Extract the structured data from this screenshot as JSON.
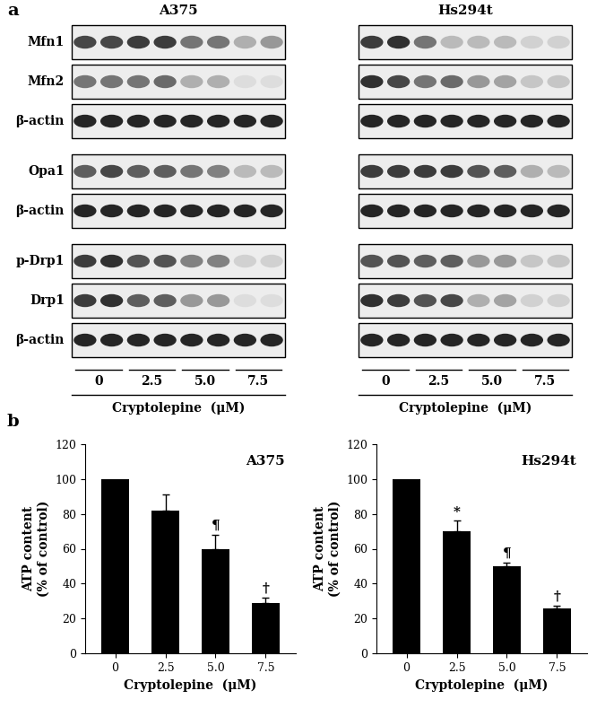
{
  "blot_panel": {
    "panel_label": "a",
    "row_groups": [
      [
        "Mfn1",
        "Mfn2",
        "β-actin"
      ],
      [
        "Opa1",
        "β-actin"
      ],
      [
        "p-Drp1",
        "Drp1",
        "β-actin"
      ]
    ],
    "doses": [
      "0",
      "2.5",
      "5.0",
      "7.5"
    ],
    "lanes_per_dose": 2,
    "xlabel": "Cryptolepine  (μM)",
    "blots": [
      {
        "cell_line": "A375",
        "band_intensity": [
          [
            0.8,
            0.8,
            0.85,
            0.85,
            0.6,
            0.6,
            0.35,
            0.45
          ],
          [
            0.6,
            0.6,
            0.6,
            0.65,
            0.35,
            0.35,
            0.15,
            0.15
          ],
          [
            0.95,
            0.95,
            0.95,
            0.95,
            0.95,
            0.95,
            0.95,
            0.95
          ],
          [
            0.7,
            0.8,
            0.7,
            0.7,
            0.6,
            0.55,
            0.3,
            0.3
          ],
          [
            0.95,
            0.95,
            0.95,
            0.95,
            0.95,
            0.95,
            0.95,
            0.95
          ],
          [
            0.85,
            0.9,
            0.75,
            0.75,
            0.55,
            0.55,
            0.2,
            0.2
          ],
          [
            0.85,
            0.9,
            0.7,
            0.7,
            0.45,
            0.45,
            0.15,
            0.15
          ],
          [
            0.95,
            0.95,
            0.95,
            0.95,
            0.95,
            0.95,
            0.95,
            0.95
          ]
        ]
      },
      {
        "cell_line": "Hs294t",
        "band_intensity": [
          [
            0.85,
            0.9,
            0.6,
            0.3,
            0.3,
            0.3,
            0.2,
            0.2
          ],
          [
            0.9,
            0.8,
            0.6,
            0.65,
            0.45,
            0.4,
            0.25,
            0.25
          ],
          [
            0.95,
            0.95,
            0.95,
            0.95,
            0.95,
            0.95,
            0.95,
            0.95
          ],
          [
            0.85,
            0.85,
            0.85,
            0.85,
            0.75,
            0.7,
            0.35,
            0.3
          ],
          [
            0.95,
            0.95,
            0.95,
            0.95,
            0.95,
            0.95,
            0.95,
            0.95
          ],
          [
            0.75,
            0.75,
            0.7,
            0.7,
            0.45,
            0.45,
            0.25,
            0.25
          ],
          [
            0.9,
            0.85,
            0.75,
            0.8,
            0.35,
            0.4,
            0.2,
            0.2
          ],
          [
            0.95,
            0.95,
            0.95,
            0.95,
            0.95,
            0.95,
            0.95,
            0.95
          ]
        ]
      }
    ]
  },
  "chart_panel_label": "b",
  "chart_data": [
    {
      "type": "bar",
      "title": "A375",
      "categories": [
        "0",
        "2.5",
        "5.0",
        "7.5"
      ],
      "values": [
        100,
        82,
        60,
        29
      ],
      "errors": [
        0,
        9,
        8,
        3
      ],
      "significance": [
        null,
        null,
        "¶",
        "†"
      ],
      "color": "#000000",
      "xlabel": "Cryptolepine  (μM)",
      "ylabel": "ATP content\n(% of control)",
      "ylim": [
        0,
        120
      ],
      "yticks": [
        0,
        20,
        40,
        60,
        80,
        100,
        120
      ]
    },
    {
      "type": "bar",
      "title": "Hs294t",
      "categories": [
        "0",
        "2.5",
        "5.0",
        "7.5"
      ],
      "values": [
        100,
        70,
        50,
        26
      ],
      "errors": [
        0,
        6,
        2,
        1.5
      ],
      "significance": [
        null,
        "*",
        "¶",
        "†"
      ],
      "color": "#000000",
      "xlabel": "Cryptolepine  (μM)",
      "ylabel": "ATP content\n(% of control)",
      "ylim": [
        0,
        120
      ],
      "yticks": [
        0,
        20,
        40,
        60,
        80,
        100,
        120
      ]
    }
  ]
}
